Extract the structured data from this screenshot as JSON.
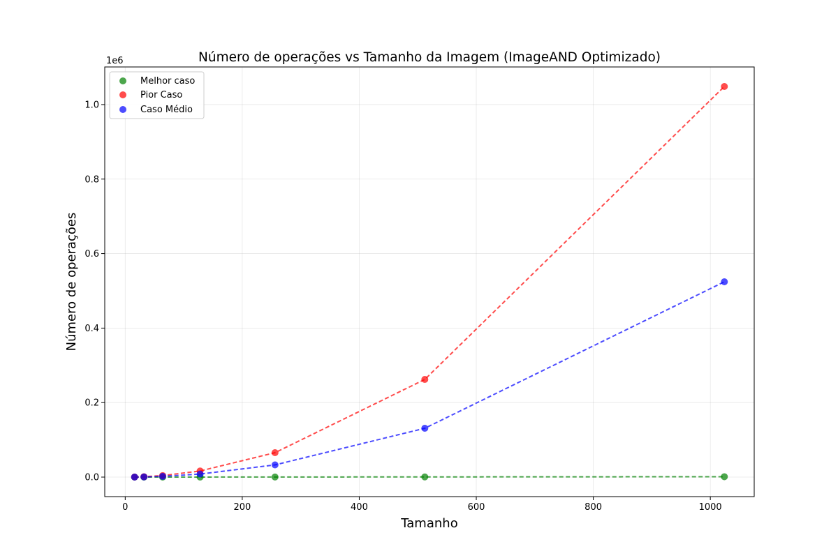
{
  "chart_data": {
    "type": "line",
    "title": "Número de operações vs Tamanho da Imagem (ImageAND Optimizado)",
    "xlabel": "Tamanho",
    "ylabel": "Número de operações",
    "y_offset_label": "1e6",
    "xlim": [
      -35,
      1075
    ],
    "ylim": [
      -0.0524,
      1.101
    ],
    "x_ticks": [
      0,
      200,
      400,
      600,
      800,
      1000
    ],
    "x_tick_labels": [
      "0",
      "200",
      "400",
      "600",
      "800",
      "1000"
    ],
    "y_ticks": [
      0.0,
      0.2,
      0.4,
      0.6,
      0.8,
      1.0
    ],
    "y_tick_labels": [
      "0.0",
      "0.2",
      "0.4",
      "0.6",
      "0.8",
      "1.0"
    ],
    "grid": true,
    "legend_position": "top-left",
    "x": [
      16,
      32,
      64,
      128,
      256,
      512,
      1024
    ],
    "series": [
      {
        "name": "Melhor caso",
        "color": "#008000",
        "values": [
          1.6e-05,
          3.2e-05,
          6.4e-05,
          0.000128,
          0.000256,
          0.000512,
          0.001024
        ]
      },
      {
        "name": "Pior Caso",
        "color": "#ff0000",
        "values": [
          0.000256,
          0.001024,
          0.004096,
          0.016384,
          0.065536,
          0.262144,
          1.048576
        ]
      },
      {
        "name": "Caso Médio",
        "color": "#0000ff",
        "values": [
          0.000128,
          0.000512,
          0.002048,
          0.008192,
          0.032768,
          0.131072,
          0.524288
        ]
      }
    ]
  }
}
